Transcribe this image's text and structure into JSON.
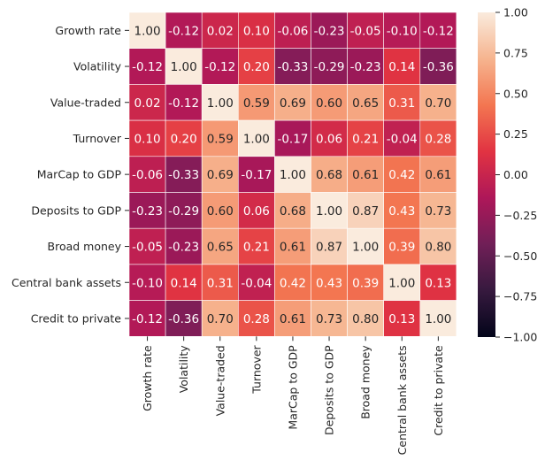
{
  "chart_data": {
    "type": "heatmap",
    "title": "",
    "xlabel": "",
    "ylabel": "",
    "labels": [
      "Growth rate",
      "Volatility",
      "Value-traded",
      "Turnover",
      "MarCap to GDP",
      "Deposits to GDP",
      "Broad money",
      "Central bank assets",
      "Credit to private"
    ],
    "matrix": [
      [
        1.0,
        -0.12,
        0.02,
        0.1,
        -0.06,
        -0.23,
        -0.05,
        -0.1,
        -0.12
      ],
      [
        -0.12,
        1.0,
        -0.12,
        0.2,
        -0.33,
        -0.29,
        -0.23,
        0.14,
        -0.36
      ],
      [
        0.02,
        -0.12,
        1.0,
        0.59,
        0.69,
        0.6,
        0.65,
        0.31,
        0.7
      ],
      [
        0.1,
        0.2,
        0.59,
        1.0,
        -0.17,
        0.06,
        0.21,
        -0.04,
        0.28
      ],
      [
        -0.06,
        -0.33,
        0.69,
        -0.17,
        1.0,
        0.68,
        0.61,
        0.42,
        0.61
      ],
      [
        -0.23,
        -0.29,
        0.6,
        0.06,
        0.68,
        1.0,
        0.87,
        0.43,
        0.73
      ],
      [
        -0.05,
        -0.23,
        0.65,
        0.21,
        0.61,
        0.87,
        1.0,
        0.39,
        0.8
      ],
      [
        -0.1,
        0.14,
        0.31,
        -0.04,
        0.42,
        0.43,
        0.39,
        1.0,
        0.13
      ],
      [
        -0.12,
        -0.36,
        0.7,
        0.28,
        0.61,
        0.73,
        0.8,
        0.13,
        1.0
      ]
    ],
    "vmin": -1.0,
    "vmax": 1.0,
    "colorbar_ticks": [
      "1.00",
      "0.75",
      "0.50",
      "0.25",
      "0.00",
      "−0.25",
      "−0.50",
      "−0.75",
      "−1.00"
    ],
    "colorbar_tick_values": [
      1.0,
      0.75,
      0.5,
      0.25,
      0.0,
      -0.25,
      -0.5,
      -0.75,
      -1.0
    ],
    "colormap_stops": [
      "#03051a",
      "#36193e",
      "#701f57",
      "#ae1759",
      "#e13342",
      "#f37651",
      "#f6b48f",
      "#faebdd"
    ],
    "cell_text_light": "#ffffff",
    "cell_text_dark": "#262626",
    "cell_border_color": "#ffffff"
  }
}
